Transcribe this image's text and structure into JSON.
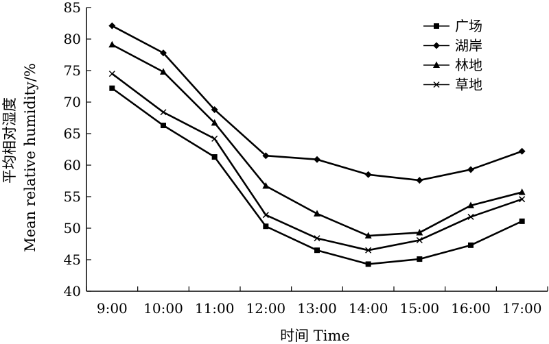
{
  "chart_data": {
    "type": "line",
    "title": "",
    "xlabel": "时间 Time",
    "ylabel_cn": "平均相对湿度",
    "ylabel_en": "Mean relative humidity/%",
    "ylim": [
      40,
      85
    ],
    "yticks": [
      40,
      45,
      50,
      55,
      60,
      65,
      70,
      75,
      80,
      85
    ],
    "categories": [
      "9:00",
      "10:00",
      "11:00",
      "12:00",
      "13:00",
      "14:00",
      "15:00",
      "16:00",
      "17:00"
    ],
    "grid": false,
    "legend_position": "top-right",
    "series": [
      {
        "name": "广场",
        "marker": "square",
        "values": [
          72.2,
          66.3,
          61.3,
          50.3,
          46.5,
          44.3,
          45.1,
          47.3,
          51.1
        ]
      },
      {
        "name": "湖岸",
        "marker": "diamond",
        "values": [
          82.1,
          77.8,
          68.8,
          61.5,
          60.9,
          58.5,
          57.6,
          59.3,
          62.2
        ]
      },
      {
        "name": "林地",
        "marker": "triangle",
        "values": [
          79.1,
          74.8,
          66.7,
          56.7,
          52.3,
          48.8,
          49.3,
          53.6,
          55.7
        ]
      },
      {
        "name": "草地",
        "marker": "x",
        "values": [
          74.5,
          68.4,
          64.2,
          52.1,
          48.4,
          46.5,
          48.1,
          51.8,
          54.6
        ]
      }
    ]
  }
}
